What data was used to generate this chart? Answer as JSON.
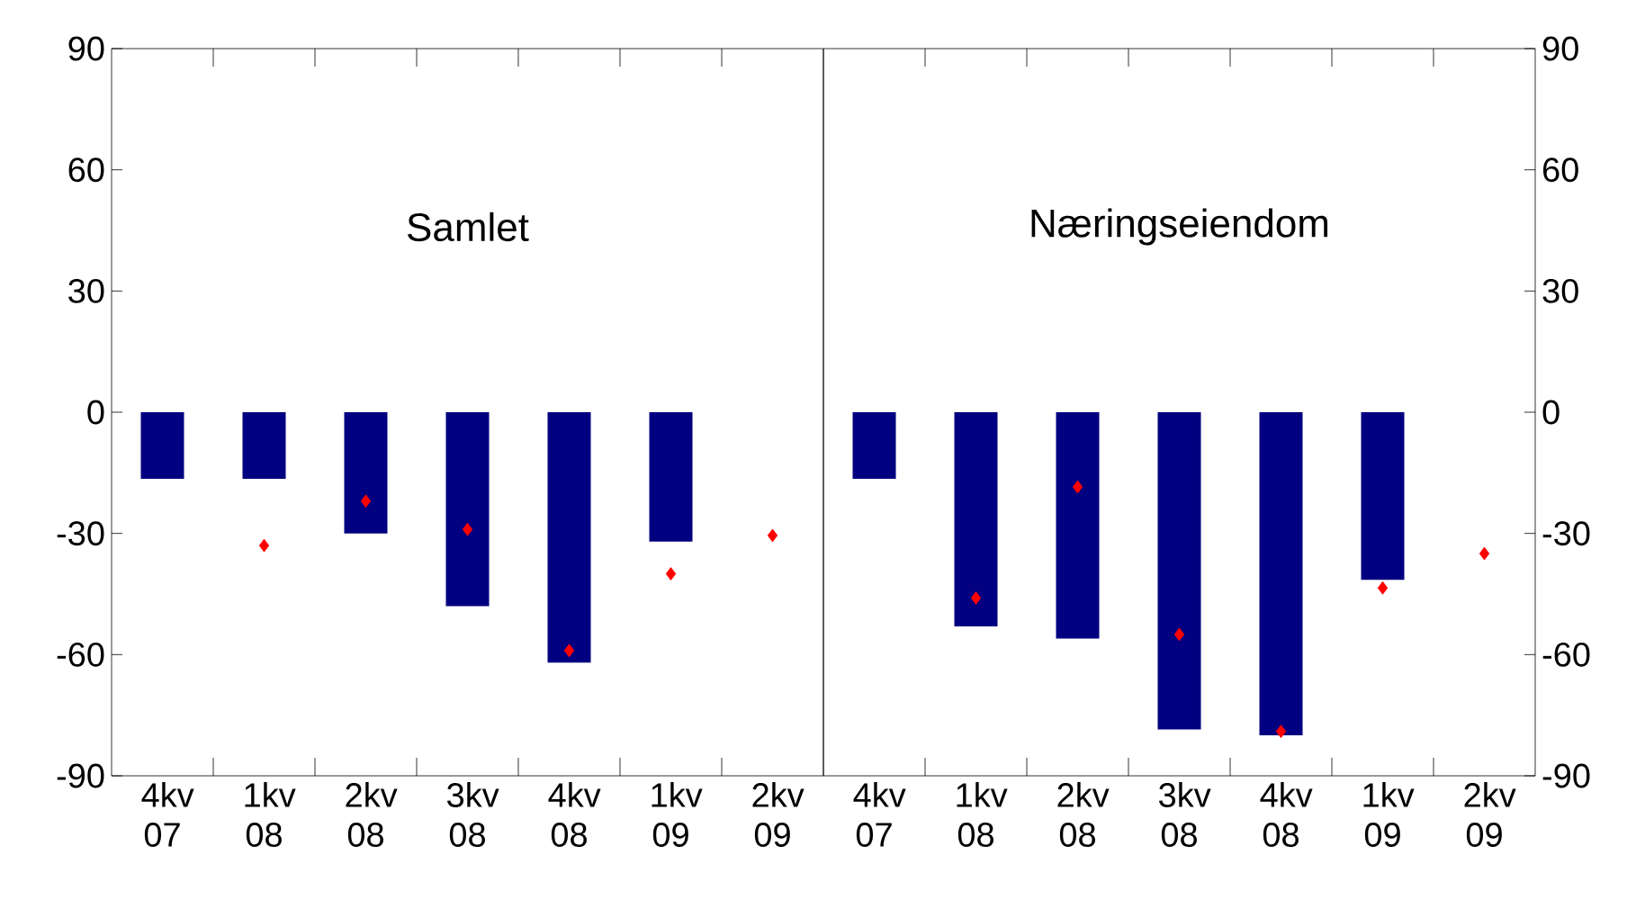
{
  "chart_data": [
    {
      "type": "bar",
      "title": "Samlet",
      "categories": [
        "4kv 07",
        "1kv 08",
        "2kv 08",
        "3kv 08",
        "4kv 08",
        "1kv 09",
        "2kv 09"
      ],
      "series": [
        {
          "color": "#000080",
          "values": [
            -16.5,
            -16.5,
            -30,
            -48,
            -62,
            -32,
            null
          ]
        },
        {
          "type": "scatter",
          "color": "#ff0000",
          "marker": "diamond",
          "values": [
            null,
            -33,
            -22,
            -29,
            -59,
            -40,
            -30.5
          ]
        }
      ],
      "ylim": [
        -90,
        90
      ],
      "yticks": [
        -90,
        -60,
        -30,
        0,
        30,
        60,
        90
      ],
      "grid": false
    },
    {
      "type": "bar",
      "title": "Næringseiendom",
      "categories": [
        "4kv 07",
        "1kv 08",
        "2kv 08",
        "3kv 08",
        "4kv 08",
        "1kv 09",
        "2kv 09"
      ],
      "series": [
        {
          "color": "#000080",
          "values": [
            -16.5,
            -53,
            -56,
            -78.5,
            -80,
            -41.5,
            null
          ]
        },
        {
          "type": "scatter",
          "color": "#ff0000",
          "marker": "diamond",
          "values": [
            null,
            -46,
            -18.5,
            -55,
            -79,
            -43.5,
            -35
          ]
        }
      ],
      "ylim": [
        -90,
        90
      ],
      "yticks": [
        -90,
        -60,
        -30,
        0,
        30,
        60,
        90
      ],
      "grid": false
    }
  ]
}
